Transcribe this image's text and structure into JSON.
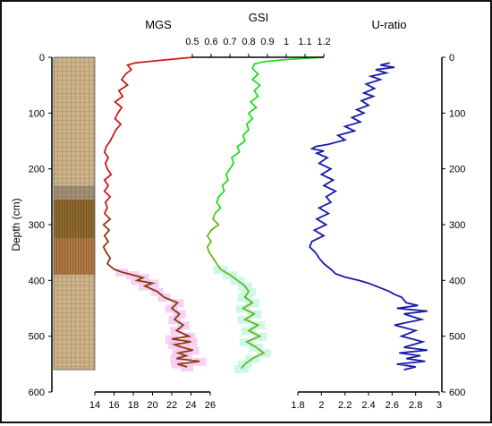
{
  "chart_data": [
    {
      "type": "line",
      "title": "MGS",
      "xlabel": "",
      "ylabel": "Depth (cm)",
      "xlim": [
        14,
        26
      ],
      "xticks": [
        "14",
        "16",
        "18",
        "20",
        "22",
        "24",
        "26"
      ],
      "ylim": [
        0,
        600
      ],
      "yticks": [
        "0",
        "100",
        "200",
        "300",
        "400",
        "500",
        "600"
      ],
      "invert_y": true,
      "grid": false,
      "series": [
        {
          "color": "#d01818",
          "color_deep": "#8b3a10",
          "depth": [
            0,
            6,
            10,
            14,
            22,
            30,
            40,
            50,
            60,
            70,
            80,
            90,
            100,
            110,
            120,
            130,
            140,
            150,
            160,
            170,
            180,
            190,
            200,
            210,
            220,
            230,
            240,
            250,
            260,
            270,
            280,
            290,
            300,
            310,
            320,
            330,
            340,
            350,
            360,
            370,
            380,
            385,
            390,
            395,
            400,
            405,
            410,
            420,
            430,
            440,
            450,
            460,
            470,
            480,
            490,
            500,
            505,
            510,
            515,
            520,
            525,
            530,
            535,
            540,
            545,
            550,
            555
          ],
          "values": [
            24.2,
            20.5,
            18.2,
            17.4,
            17.8,
            17.2,
            16.8,
            17.4,
            16.5,
            16.9,
            16.1,
            16.8,
            16.4,
            16.1,
            16.7,
            16.2,
            15.9,
            15.6,
            15.2,
            15.0,
            15.4,
            15.1,
            15.3,
            15.7,
            15.0,
            15.4,
            15.0,
            15.6,
            15.1,
            15.3,
            15.0,
            15.6,
            14.9,
            15.5,
            15.0,
            15.4,
            14.9,
            15.2,
            15.6,
            15.3,
            16.0,
            16.8,
            17.9,
            19.0,
            18.4,
            20.0,
            19.2,
            20.5,
            21.2,
            22.6,
            22.0,
            22.8,
            22.3,
            23.2,
            22.5,
            23.8,
            22.0,
            24.0,
            22.3,
            23.1,
            24.2,
            22.7,
            23.5,
            22.5,
            24.9,
            22.6,
            23.6
          ]
        }
      ]
    },
    {
      "type": "line",
      "title": "GSI",
      "xlabel": "",
      "ylabel": "",
      "xlim": [
        0.5,
        1.2
      ],
      "xticks": [
        "0.5",
        "0.6",
        "0.7",
        "0.8",
        "0.9",
        "1",
        "1.1",
        "1.2"
      ],
      "ylim": [
        0,
        600
      ],
      "invert_y": true,
      "grid": false,
      "series": [
        {
          "color": "#22dd22",
          "color_deep": "#6db51e",
          "depth": [
            0,
            4,
            8,
            12,
            20,
            30,
            40,
            50,
            60,
            70,
            80,
            90,
            100,
            110,
            120,
            130,
            140,
            150,
            160,
            170,
            180,
            190,
            200,
            210,
            220,
            230,
            240,
            250,
            260,
            270,
            280,
            290,
            300,
            310,
            320,
            330,
            340,
            350,
            360,
            370,
            380,
            390,
            400,
            410,
            420,
            430,
            440,
            450,
            460,
            470,
            480,
            490,
            500,
            510,
            520,
            530,
            540,
            550,
            558
          ],
          "values": [
            1.2,
            1.0,
            0.88,
            0.83,
            0.82,
            0.85,
            0.82,
            0.86,
            0.83,
            0.85,
            0.81,
            0.84,
            0.8,
            0.82,
            0.79,
            0.8,
            0.77,
            0.78,
            0.74,
            0.75,
            0.71,
            0.72,
            0.7,
            0.68,
            0.69,
            0.66,
            0.67,
            0.64,
            0.63,
            0.65,
            0.62,
            0.61,
            0.64,
            0.6,
            0.58,
            0.6,
            0.58,
            0.59,
            0.61,
            0.63,
            0.65,
            0.7,
            0.74,
            0.78,
            0.8,
            0.78,
            0.82,
            0.77,
            0.83,
            0.78,
            0.85,
            0.8,
            0.86,
            0.79,
            0.84,
            0.88,
            0.82,
            0.78,
            0.76
          ]
        }
      ]
    },
    {
      "type": "line",
      "title": "U-ratio",
      "xlabel": "",
      "ylabel": "",
      "xlim": [
        1.8,
        3.0
      ],
      "xticks": [
        "1.8",
        "2",
        "2.2",
        "2.4",
        "2.6",
        "2.8",
        "3"
      ],
      "ylim": [
        0,
        600
      ],
      "yticks": [
        "0",
        "100",
        "200",
        "300",
        "400",
        "500",
        "600"
      ],
      "invert_y": true,
      "grid": false,
      "series": [
        {
          "color": "#1a1aa8",
          "depth": [
            10,
            14,
            18,
            22,
            28,
            34,
            40,
            48,
            56,
            64,
            70,
            78,
            86,
            94,
            100,
            108,
            116,
            124,
            132,
            140,
            148,
            156,
            160,
            164,
            168,
            172,
            180,
            190,
            200,
            210,
            220,
            230,
            240,
            250,
            260,
            270,
            280,
            290,
            300,
            310,
            320,
            330,
            340,
            350,
            360,
            370,
            380,
            388,
            394,
            400,
            405,
            410,
            415,
            420,
            425,
            430,
            440,
            445,
            450,
            455,
            460,
            470,
            480,
            490,
            500,
            510,
            520,
            525,
            530,
            535,
            540,
            545,
            550,
            555,
            560
          ],
          "values": [
            2.58,
            2.5,
            2.62,
            2.46,
            2.55,
            2.42,
            2.5,
            2.38,
            2.45,
            2.36,
            2.44,
            2.34,
            2.4,
            2.3,
            2.36,
            2.26,
            2.33,
            2.2,
            2.28,
            2.14,
            2.2,
            2.06,
            1.95,
            1.92,
            2.02,
            1.96,
            2.05,
            1.98,
            2.08,
            2.0,
            2.1,
            2.02,
            2.12,
            2.04,
            2.08,
            1.98,
            2.06,
            1.96,
            2.04,
            1.94,
            2.02,
            1.92,
            1.9,
            1.95,
            1.98,
            2.02,
            2.08,
            2.12,
            2.2,
            2.32,
            2.4,
            2.46,
            2.52,
            2.58,
            2.62,
            2.68,
            2.72,
            2.82,
            2.64,
            2.9,
            2.7,
            2.85,
            2.62,
            2.8,
            2.68,
            2.86,
            2.7,
            2.9,
            2.66,
            2.84,
            2.72,
            2.88,
            2.64,
            2.8,
            2.7
          ]
        }
      ]
    }
  ],
  "core_log": {
    "segments": [
      {
        "from": 0,
        "to": 230,
        "fill": "#cdb48a",
        "hatch": "#9a8460"
      },
      {
        "from": 230,
        "to": 255,
        "fill": "#a38f78",
        "hatch": "#6e5c48"
      },
      {
        "from": 255,
        "to": 325,
        "fill": "#8f6a2e",
        "hatch": "#5a3e14"
      },
      {
        "from": 325,
        "to": 390,
        "fill": "#b07a44",
        "hatch": "#6a4218"
      },
      {
        "from": 390,
        "to": 560,
        "fill": "#cdb48a",
        "hatch": "#9a8460"
      }
    ]
  },
  "highlight_colors": {
    "mgs": "#f6c8f2",
    "gsi": "#c8f6e4"
  }
}
